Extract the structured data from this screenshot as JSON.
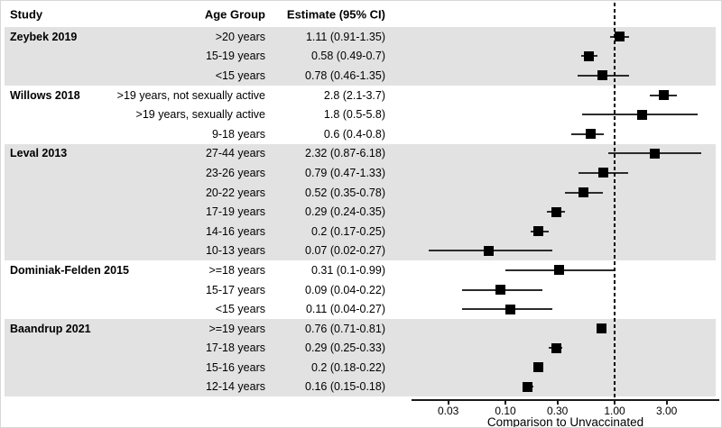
{
  "figure": {
    "header": {
      "study": "Study",
      "age_group": "Age Group",
      "estimate": "Estimate (95% CI)"
    }
  },
  "chart_data": {
    "type": "forest",
    "xlabel": "Comparison to Unvaccinated",
    "xscale": "log",
    "xtick_labels": [
      "0.03",
      "0.10",
      "0.30",
      "1.00",
      "3.00"
    ],
    "xtick_values": [
      0.03,
      0.1,
      0.3,
      1.0,
      3.0
    ],
    "xlim": [
      0.014,
      8.7
    ],
    "reference_line": 1.0,
    "legend": "none",
    "grid": "off",
    "columns": [
      "Study",
      "Age Group",
      "Estimate (95% CI)"
    ],
    "groups": [
      {
        "study": "Zeybek 2019",
        "shaded": true,
        "rows": [
          {
            "age_group": ">20 years",
            "estimate_label": "1.11 (0.91-1.35)",
            "estimate": 1.11,
            "ci_low": 0.91,
            "ci_high": 1.35
          },
          {
            "age_group": "15-19 years",
            "estimate_label": "0.58 (0.49-0.7)",
            "estimate": 0.58,
            "ci_low": 0.49,
            "ci_high": 0.7
          },
          {
            "age_group": "<15 years",
            "estimate_label": "0.78 (0.46-1.35)",
            "estimate": 0.78,
            "ci_low": 0.46,
            "ci_high": 1.35
          }
        ]
      },
      {
        "study": "Willows 2018",
        "shaded": false,
        "rows": [
          {
            "age_group": ">19 years, not sexually active",
            "estimate_label": "2.8 (2.1-3.7)",
            "estimate": 2.8,
            "ci_low": 2.1,
            "ci_high": 3.7
          },
          {
            "age_group": ">19 years, sexually active",
            "estimate_label": "1.8 (0.5-5.8)",
            "estimate": 1.8,
            "ci_low": 0.5,
            "ci_high": 5.8
          },
          {
            "age_group": "9-18 years",
            "estimate_label": "0.6 (0.4-0.8)",
            "estimate": 0.6,
            "ci_low": 0.4,
            "ci_high": 0.8
          }
        ]
      },
      {
        "study": "Leval 2013",
        "shaded": true,
        "rows": [
          {
            "age_group": "27-44 years",
            "estimate_label": "2.32 (0.87-6.18)",
            "estimate": 2.32,
            "ci_low": 0.87,
            "ci_high": 6.18
          },
          {
            "age_group": "23-26 years",
            "estimate_label": "0.79 (0.47-1.33)",
            "estimate": 0.79,
            "ci_low": 0.47,
            "ci_high": 1.33
          },
          {
            "age_group": "20-22 years",
            "estimate_label": "0.52 (0.35-0.78)",
            "estimate": 0.52,
            "ci_low": 0.35,
            "ci_high": 0.78
          },
          {
            "age_group": "17-19 years",
            "estimate_label": "0.29 (0.24-0.35)",
            "estimate": 0.29,
            "ci_low": 0.24,
            "ci_high": 0.35
          },
          {
            "age_group": "14-16 years",
            "estimate_label": "0.2 (0.17-0.25)",
            "estimate": 0.2,
            "ci_low": 0.17,
            "ci_high": 0.25
          },
          {
            "age_group": "10-13 years",
            "estimate_label": "0.07 (0.02-0.27)",
            "estimate": 0.07,
            "ci_low": 0.02,
            "ci_high": 0.27
          }
        ]
      },
      {
        "study": "Dominiak-Felden 2015",
        "shaded": false,
        "rows": [
          {
            "age_group": ">=18 years",
            "estimate_label": "0.31 (0.1-0.99)",
            "estimate": 0.31,
            "ci_low": 0.1,
            "ci_high": 0.99
          },
          {
            "age_group": "15-17 years",
            "estimate_label": "0.09 (0.04-0.22)",
            "estimate": 0.09,
            "ci_low": 0.04,
            "ci_high": 0.22
          },
          {
            "age_group": "<15 years",
            "estimate_label": "0.11 (0.04-0.27)",
            "estimate": 0.11,
            "ci_low": 0.04,
            "ci_high": 0.27
          }
        ]
      },
      {
        "study": "Baandrup 2021",
        "shaded": true,
        "rows": [
          {
            "age_group": ">=19 years",
            "estimate_label": "0.76 (0.71-0.81)",
            "estimate": 0.76,
            "ci_low": 0.71,
            "ci_high": 0.81
          },
          {
            "age_group": "17-18 years",
            "estimate_label": "0.29 (0.25-0.33)",
            "estimate": 0.29,
            "ci_low": 0.25,
            "ci_high": 0.33
          },
          {
            "age_group": "15-16 years",
            "estimate_label": "0.2 (0.18-0.22)",
            "estimate": 0.2,
            "ci_low": 0.18,
            "ci_high": 0.22
          },
          {
            "age_group": "12-14 years",
            "estimate_label": "0.16 (0.15-0.18)",
            "estimate": 0.16,
            "ci_low": 0.15,
            "ci_high": 0.18
          }
        ]
      }
    ]
  },
  "colors": {
    "band": "#e2e2e2",
    "marker": "#000000",
    "ci_line": "#2b2b2b",
    "reference_line": "#000000",
    "axis": "#1a1a1a",
    "text": "#000000"
  }
}
